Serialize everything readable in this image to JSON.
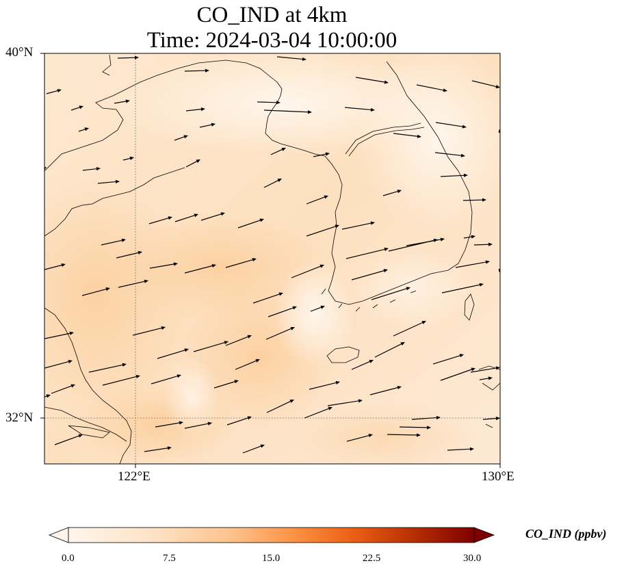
{
  "title": {
    "line1": "CO_IND at 4km",
    "line2": "Time: 2024-03-04 10:00:00"
  },
  "axes": {
    "y_ticks": [
      {
        "value": 40,
        "label": "40°N"
      },
      {
        "value": 32,
        "label": "32°N"
      }
    ],
    "x_ticks": [
      {
        "value": 122,
        "label": "122°E"
      },
      {
        "value": 130,
        "label": "130°E"
      }
    ],
    "lon_range": [
      120,
      130
    ],
    "lat_range": [
      31,
      40
    ],
    "gridlines": "dotted"
  },
  "colorbar": {
    "label": "CO_IND (ppbv)",
    "ticks": [
      "0.0",
      "7.5",
      "15.0",
      "22.5",
      "30.0"
    ],
    "min": 0,
    "max": 30,
    "colormap": [
      "#fff5eb",
      "#fdd4aa",
      "#fd9f55",
      "#e95e0d",
      "#b13a03",
      "#7f0000"
    ],
    "extend": "both"
  },
  "field": {
    "variable": "CO_IND",
    "typical_range_ppbv": [
      1,
      7
    ]
  },
  "colors": {
    "field_light": "#fff1e0",
    "field_mid": "#fde3c6",
    "field_dark": "#fbd3a6",
    "coastline": "#000000",
    "arrow": "#000000"
  }
}
